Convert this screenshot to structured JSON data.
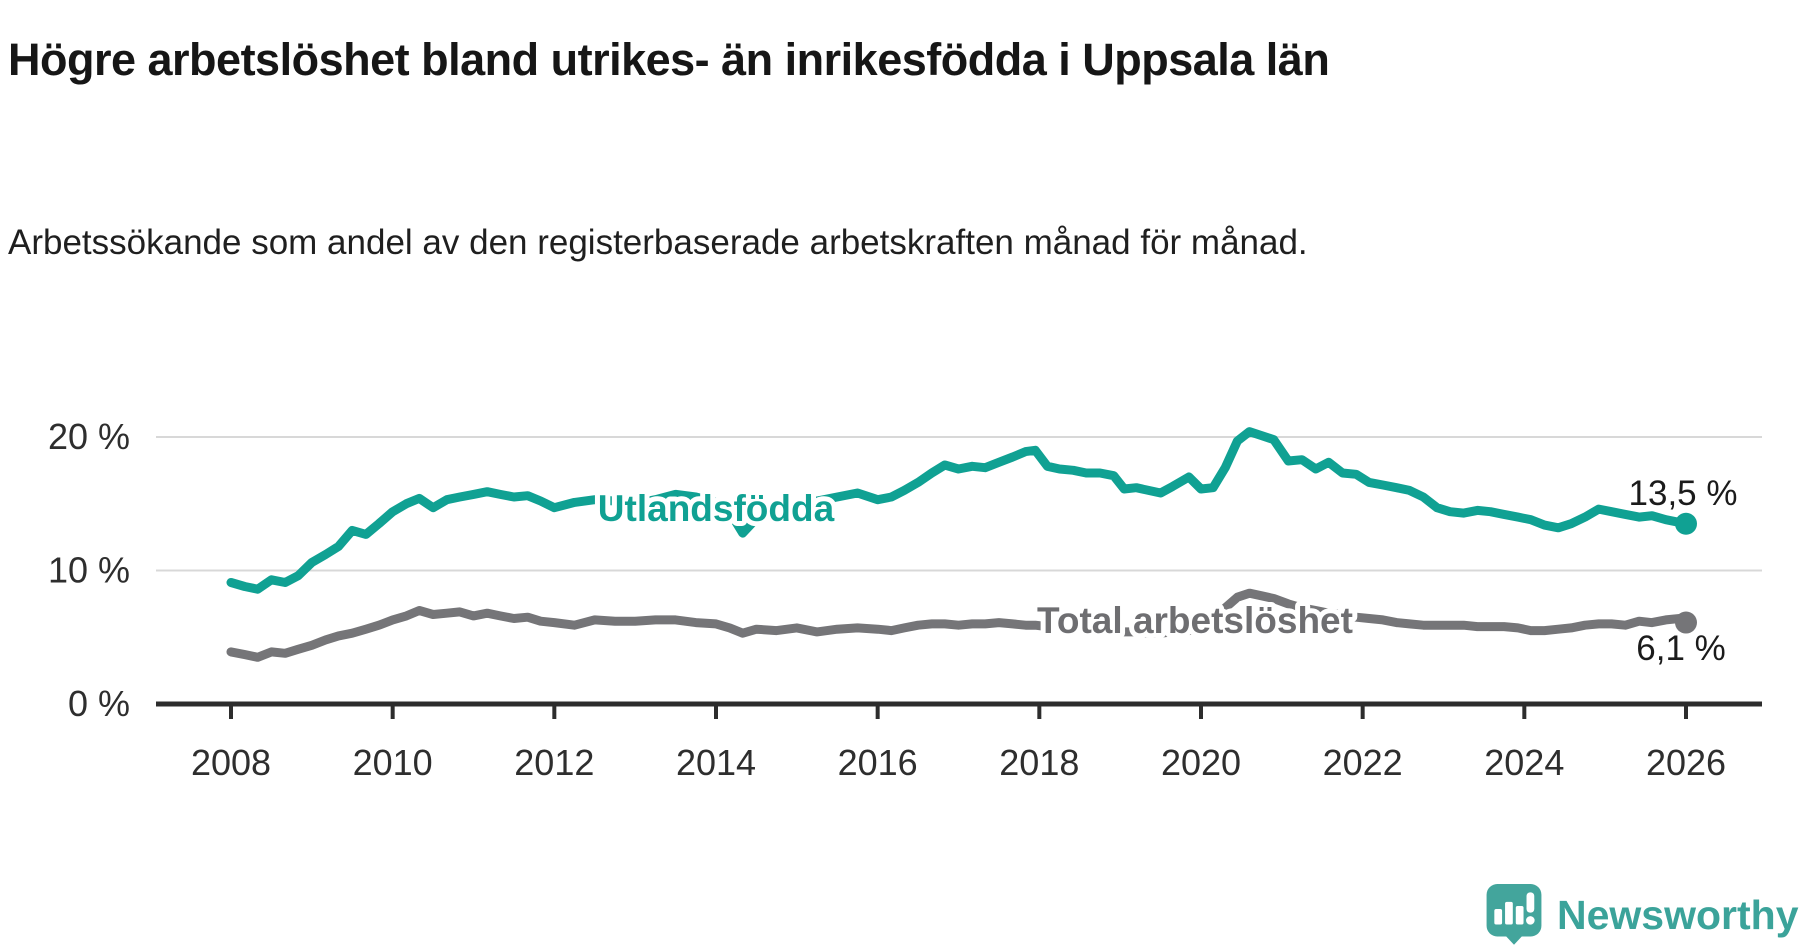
{
  "header": {
    "title": "Högre arbetslöshet bland utrikes- än inrikesfödda i Uppsala län",
    "subtitle": "Arbetssökande som andel av den registerbaserade arbetskraften månad för månad."
  },
  "footer": {
    "brand": "Newsworthy"
  },
  "colors": {
    "series_utlandsfodda": "#10A193",
    "series_total": "#757578",
    "grid": "#d8d8d8",
    "axis": "#2d2d2d",
    "tick_text": "#2e2e2e",
    "logo_bubble": "#43A59C",
    "logo_text": "#3BA39A"
  },
  "chart_data": {
    "type": "line",
    "title": "Högre arbetslöshet bland utrikes- än inrikesfödda i Uppsala län",
    "subtitle": "Arbetssökande som andel av den registerbaserade arbetskraften månad för månad.",
    "xlabel": "",
    "ylabel": "",
    "unit": "%",
    "xlim": [
      2008,
      2026
    ],
    "ylim": [
      0,
      21.5
    ],
    "grid": "horizontal",
    "legend_position": "inline-labels",
    "x_ticks": [
      {
        "value": 2008,
        "label": "2008"
      },
      {
        "value": 2010,
        "label": "2010"
      },
      {
        "value": 2012,
        "label": "2012"
      },
      {
        "value": 2014,
        "label": "2014"
      },
      {
        "value": 2016,
        "label": "2016"
      },
      {
        "value": 2018,
        "label": "2018"
      },
      {
        "value": 2020,
        "label": "2020"
      },
      {
        "value": 2022,
        "label": "2022"
      },
      {
        "value": 2024,
        "label": "2024"
      },
      {
        "value": 2026,
        "label": "2026"
      }
    ],
    "y_ticks": [
      {
        "value": 0,
        "label": "0 %"
      },
      {
        "value": 10,
        "label": "10 %"
      },
      {
        "value": 20,
        "label": "20 %"
      }
    ],
    "series": [
      {
        "id": "utlandsfodda",
        "name": "Utlandsfödda",
        "color": "#10A193",
        "end_label": "13,5 %",
        "end_value": 13.5,
        "x": [
          2008.0,
          2008.17,
          2008.33,
          2008.5,
          2008.67,
          2008.83,
          2009.0,
          2009.17,
          2009.33,
          2009.5,
          2009.67,
          2009.83,
          2010.0,
          2010.17,
          2010.33,
          2010.5,
          2010.67,
          2010.83,
          2011.0,
          2011.17,
          2011.33,
          2011.5,
          2011.67,
          2011.83,
          2012.0,
          2012.25,
          2012.5,
          2012.75,
          2013.0,
          2013.25,
          2013.5,
          2013.75,
          2014.0,
          2014.17,
          2014.33,
          2014.5,
          2014.75,
          2015.0,
          2015.25,
          2015.5,
          2015.75,
          2016.0,
          2016.17,
          2016.33,
          2016.5,
          2016.67,
          2016.83,
          2017.0,
          2017.17,
          2017.33,
          2017.5,
          2017.67,
          2017.83,
          2017.95,
          2018.1,
          2018.25,
          2018.42,
          2018.58,
          2018.75,
          2018.92,
          2019.05,
          2019.2,
          2019.35,
          2019.5,
          2019.65,
          2019.85,
          2020.0,
          2020.15,
          2020.3,
          2020.45,
          2020.6,
          2020.75,
          2020.9,
          2021.08,
          2021.25,
          2021.42,
          2021.58,
          2021.75,
          2021.92,
          2022.08,
          2022.25,
          2022.42,
          2022.58,
          2022.75,
          2022.92,
          2023.08,
          2023.25,
          2023.42,
          2023.58,
          2023.75,
          2023.92,
          2024.08,
          2024.25,
          2024.42,
          2024.58,
          2024.75,
          2024.92,
          2025.08,
          2025.25,
          2025.42,
          2025.58,
          2025.75,
          2025.92,
          2026.0
        ],
        "values": [
          9.1,
          8.8,
          8.6,
          9.3,
          9.1,
          9.6,
          10.6,
          11.2,
          11.8,
          13.0,
          12.7,
          13.5,
          14.4,
          15.0,
          15.4,
          14.7,
          15.3,
          15.5,
          15.7,
          15.9,
          15.7,
          15.5,
          15.6,
          15.2,
          14.7,
          15.1,
          15.3,
          15.2,
          15.0,
          15.3,
          15.7,
          15.5,
          15.1,
          14.4,
          12.8,
          13.9,
          14.7,
          15.0,
          15.2,
          15.5,
          15.8,
          15.3,
          15.5,
          16.0,
          16.6,
          17.3,
          17.9,
          17.6,
          17.8,
          17.7,
          18.1,
          18.5,
          18.9,
          19.0,
          17.8,
          17.6,
          17.5,
          17.3,
          17.3,
          17.1,
          16.1,
          16.2,
          16.0,
          15.8,
          16.3,
          17.0,
          16.1,
          16.2,
          17.7,
          19.7,
          20.4,
          20.1,
          19.8,
          18.2,
          18.3,
          17.6,
          18.1,
          17.3,
          17.2,
          16.6,
          16.4,
          16.2,
          16.0,
          15.5,
          14.7,
          14.4,
          14.3,
          14.5,
          14.4,
          14.2,
          14.0,
          13.8,
          13.4,
          13.2,
          13.5,
          14.0,
          14.6,
          14.4,
          14.2,
          14.0,
          14.1,
          13.8,
          13.6,
          13.5
        ]
      },
      {
        "id": "total-arbetsloshet",
        "name": "Total arbetslöshet",
        "color": "#757578",
        "label_color": "#6e6e71",
        "end_label": "6,1 %",
        "end_value": 6.1,
        "x": [
          2008.0,
          2008.17,
          2008.33,
          2008.5,
          2008.67,
          2008.83,
          2009.0,
          2009.17,
          2009.33,
          2009.5,
          2009.67,
          2009.83,
          2010.0,
          2010.17,
          2010.33,
          2010.5,
          2010.67,
          2010.83,
          2011.0,
          2011.17,
          2011.33,
          2011.5,
          2011.67,
          2011.83,
          2012.0,
          2012.25,
          2012.5,
          2012.75,
          2013.0,
          2013.25,
          2013.5,
          2013.75,
          2014.0,
          2014.17,
          2014.33,
          2014.5,
          2014.75,
          2015.0,
          2015.25,
          2015.5,
          2015.75,
          2016.0,
          2016.17,
          2016.33,
          2016.5,
          2016.67,
          2016.83,
          2017.0,
          2017.17,
          2017.33,
          2017.5,
          2017.67,
          2017.83,
          2017.95,
          2018.1,
          2018.25,
          2018.42,
          2018.58,
          2018.75,
          2018.92,
          2019.05,
          2019.2,
          2019.35,
          2019.5,
          2019.65,
          2019.85,
          2020.0,
          2020.15,
          2020.3,
          2020.45,
          2020.6,
          2020.75,
          2020.9,
          2021.08,
          2021.25,
          2021.42,
          2021.58,
          2021.75,
          2021.92,
          2022.08,
          2022.25,
          2022.42,
          2022.58,
          2022.75,
          2022.92,
          2023.08,
          2023.25,
          2023.42,
          2023.58,
          2023.75,
          2023.92,
          2024.08,
          2024.25,
          2024.42,
          2024.58,
          2024.75,
          2024.92,
          2025.08,
          2025.25,
          2025.42,
          2025.58,
          2025.75,
          2025.92,
          2026.0
        ],
        "values": [
          3.9,
          3.7,
          3.5,
          3.9,
          3.8,
          4.1,
          4.4,
          4.8,
          5.1,
          5.3,
          5.6,
          5.9,
          6.3,
          6.6,
          7.0,
          6.7,
          6.8,
          6.9,
          6.6,
          6.8,
          6.6,
          6.4,
          6.5,
          6.2,
          6.1,
          5.9,
          6.3,
          6.2,
          6.2,
          6.3,
          6.3,
          6.1,
          6.0,
          5.7,
          5.3,
          5.6,
          5.5,
          5.7,
          5.4,
          5.6,
          5.7,
          5.6,
          5.5,
          5.7,
          5.9,
          6.0,
          6.0,
          5.9,
          6.0,
          6.0,
          6.1,
          6.0,
          5.9,
          5.9,
          5.8,
          5.7,
          5.6,
          5.6,
          5.5,
          5.5,
          5.4,
          5.4,
          5.3,
          5.3,
          5.4,
          5.5,
          5.7,
          6.2,
          7.2,
          8.0,
          8.3,
          8.1,
          7.9,
          7.5,
          7.2,
          7.0,
          6.8,
          6.7,
          6.5,
          6.4,
          6.3,
          6.1,
          6.0,
          5.9,
          5.9,
          5.9,
          5.9,
          5.8,
          5.8,
          5.8,
          5.7,
          5.5,
          5.5,
          5.6,
          5.7,
          5.9,
          6.0,
          6.0,
          5.9,
          6.2,
          6.1,
          6.3,
          6.4,
          6.1
        ]
      }
    ]
  }
}
